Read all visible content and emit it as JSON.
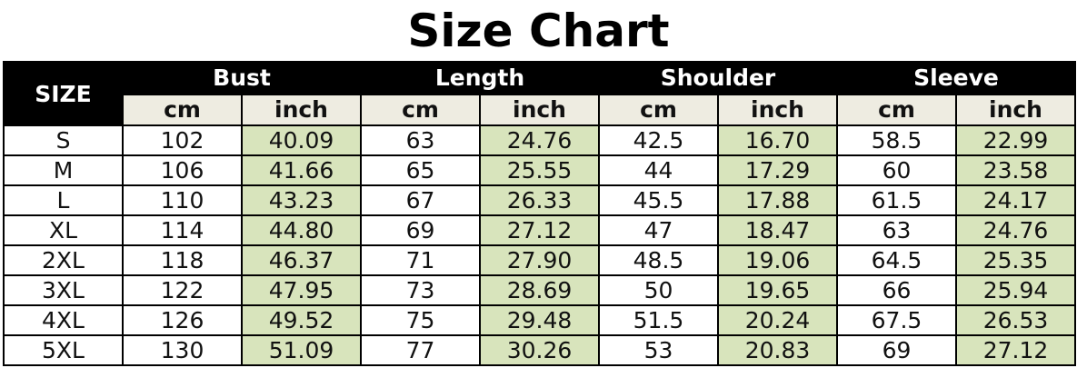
{
  "title": "Size Chart",
  "size_header": "SIZE",
  "groups": [
    "Bust",
    "Length",
    "Shoulder",
    "Sleeve"
  ],
  "units": {
    "cm": "cm",
    "inch": "inch"
  },
  "colors": {
    "header": "#000000",
    "unit_row": "#eeece1",
    "inch_cells": "#d8e4bc"
  },
  "rows": [
    [
      "S",
      "102",
      "40.09",
      "63",
      "24.76",
      "42.5",
      "16.70",
      "58.5",
      "22.99"
    ],
    [
      "M",
      "106",
      "41.66",
      "65",
      "25.55",
      "44",
      "17.29",
      "60",
      "23.58"
    ],
    [
      "L",
      "110",
      "43.23",
      "67",
      "26.33",
      "45.5",
      "17.88",
      "61.5",
      "24.17"
    ],
    [
      "XL",
      "114",
      "44.80",
      "69",
      "27.12",
      "47",
      "18.47",
      "63",
      "24.76"
    ],
    [
      "2XL",
      "118",
      "46.37",
      "71",
      "27.90",
      "48.5",
      "19.06",
      "64.5",
      "25.35"
    ],
    [
      "3XL",
      "122",
      "47.95",
      "73",
      "28.69",
      "50",
      "19.65",
      "66",
      "25.94"
    ],
    [
      "4XL",
      "126",
      "49.52",
      "75",
      "29.48",
      "51.5",
      "20.24",
      "67.5",
      "26.53"
    ],
    [
      "5XL",
      "130",
      "51.09",
      "77",
      "30.26",
      "53",
      "20.83",
      "69",
      "27.12"
    ]
  ]
}
